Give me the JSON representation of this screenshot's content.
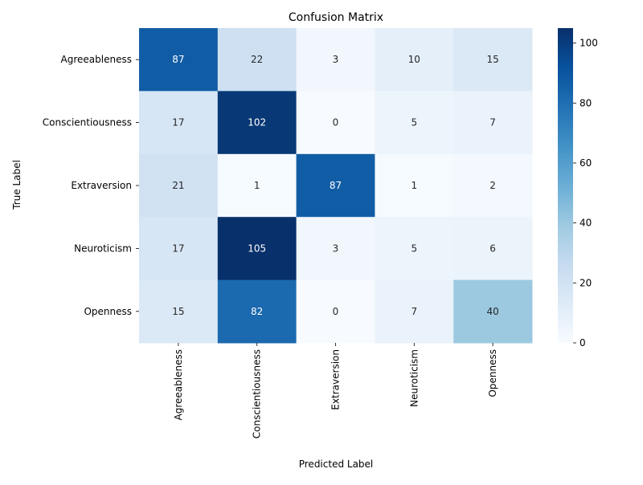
{
  "chart_data": {
    "type": "heatmap",
    "title": "Confusion Matrix",
    "xlabel": "Predicted Label",
    "ylabel": "True Label",
    "x_categories": [
      "Agreeableness",
      "Conscientiousness",
      "Extraversion",
      "Neuroticism",
      "Openness"
    ],
    "y_categories": [
      "Agreeableness",
      "Conscientiousness",
      "Extraversion",
      "Neuroticism",
      "Openness"
    ],
    "values": [
      [
        87,
        22,
        3,
        10,
        15
      ],
      [
        17,
        102,
        0,
        5,
        7
      ],
      [
        21,
        1,
        87,
        1,
        2
      ],
      [
        17,
        105,
        3,
        5,
        6
      ],
      [
        15,
        82,
        0,
        7,
        40
      ]
    ],
    "colormap": "Blues",
    "color_range": [
      0,
      105
    ],
    "colorbar_ticks": [
      0,
      20,
      40,
      60,
      80,
      100
    ]
  }
}
